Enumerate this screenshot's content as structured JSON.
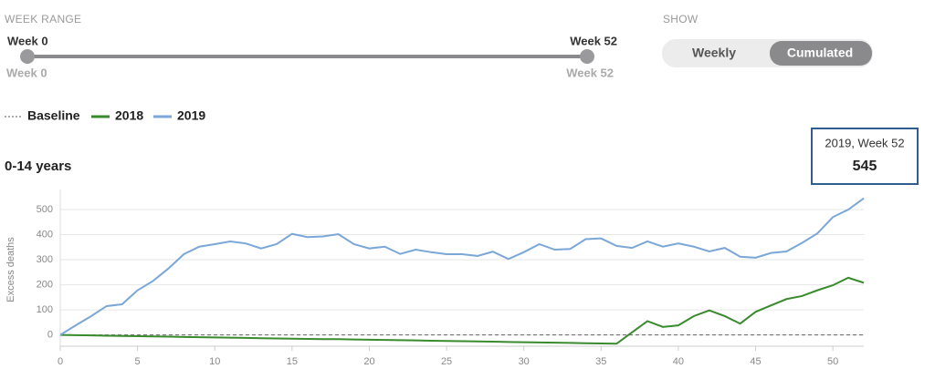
{
  "controls": {
    "week_range": {
      "label": "WEEK RANGE",
      "from": "Week 0",
      "to": "Week 52"
    },
    "show": {
      "label": "SHOW",
      "options": [
        "Weekly",
        "Cumulated"
      ],
      "selected": 1
    }
  },
  "legend_baseline": "Baseline",
  "tooltip": {
    "label": "2019, Week 52"
  },
  "chart_data": {
    "type": "line",
    "title": "0-14 years",
    "y_label": "Excess deaths",
    "x": [
      0,
      1,
      2,
      3,
      4,
      5,
      6,
      7,
      8,
      9,
      10,
      11,
      12,
      13,
      14,
      15,
      16,
      17,
      18,
      19,
      20,
      21,
      22,
      23,
      24,
      25,
      26,
      27,
      28,
      29,
      30,
      31,
      32,
      33,
      34,
      35,
      36,
      37,
      38,
      39,
      40,
      41,
      42,
      43,
      44,
      45,
      46,
      47,
      48,
      49,
      50,
      51,
      52
    ],
    "xlim": [
      0,
      52
    ],
    "xticks": [
      0,
      5,
      10,
      15,
      20,
      25,
      30,
      35,
      40,
      45,
      50
    ],
    "ylim": [
      -45,
      580
    ],
    "yticks": [
      0,
      100,
      200,
      300,
      400,
      500
    ],
    "grid": true,
    "baseline": 0,
    "series": [
      {
        "name": "2018",
        "color": "#3a8a2e",
        "values": [
          0,
          -1,
          -2,
          -3,
          -4,
          -5,
          -6,
          -7,
          -8,
          -9,
          -10,
          -11,
          -12,
          -13,
          -14,
          -15,
          -16,
          -17,
          -17,
          -18,
          -19,
          -20,
          -21,
          -22,
          -23,
          -24,
          -25,
          -26,
          -27,
          -28,
          -29,
          -30,
          -31,
          -32,
          -33,
          -34,
          -35,
          10,
          55,
          32,
          38,
          75,
          98,
          75,
          45,
          92,
          118,
          143,
          155,
          178,
          198,
          228,
          208
        ]
      },
      {
        "name": "2019",
        "color": "#7ba7d7",
        "values": [
          0,
          38,
          75,
          115,
          122,
          178,
          215,
          265,
          322,
          352,
          362,
          373,
          365,
          345,
          362,
          403,
          390,
          393,
          402,
          362,
          345,
          352,
          323,
          340,
          330,
          322,
          322,
          315,
          332,
          303,
          330,
          362,
          340,
          343,
          382,
          385,
          355,
          347,
          373,
          352,
          365,
          352,
          333,
          347,
          312,
          308,
          327,
          333,
          367,
          405,
          470,
          500,
          545
        ]
      }
    ]
  }
}
